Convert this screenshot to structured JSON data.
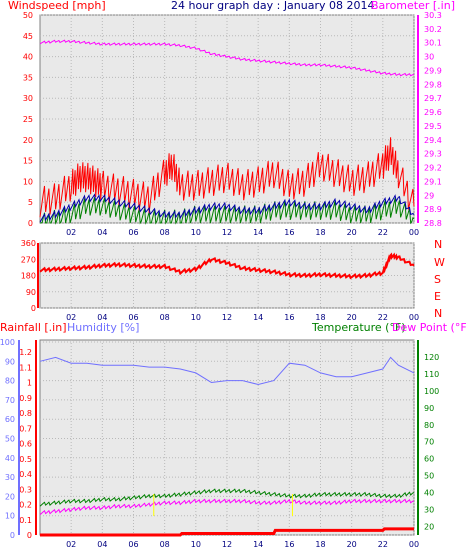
{
  "header": {
    "left_label": "Windspeed [mph]",
    "title": "24 hour graph day : January 08 2014",
    "right_label": "Barometer [.in]"
  },
  "bottom_header": {
    "rain_label": "Rainfall [.in]",
    "humidity_label": "Humidity [%]",
    "temp_label": "Temperature (°F)",
    "dew_label": "Dew Point (°F)"
  },
  "colors": {
    "background": "#ffffff",
    "plot_bg": "#e9e9e9",
    "grid": "#b9b9b9",
    "wind_gust": "#ff0000",
    "wind_avg": "#0000aa",
    "wind_speed": "#008000",
    "barometer": "#ff00ff",
    "wind_dir": "#ff0000",
    "humidity": "#7070ff",
    "temperature": "#008000",
    "dew_point": "#ff00ff",
    "rain": "#ff0000",
    "rain_tick": "#ffff00",
    "header_title": "#000080"
  },
  "chart_data": [
    {
      "type": "line",
      "name": "wind-and-barometer",
      "x_ticks": [
        "02",
        "04",
        "06",
        "08",
        "10",
        "12",
        "14",
        "16",
        "18",
        "20",
        "22",
        "00"
      ],
      "xlim": [
        0,
        24
      ],
      "y_left_ticks": [
        "0",
        "5",
        "10",
        "15",
        "20",
        "25",
        "30",
        "35",
        "40",
        "45",
        "50"
      ],
      "ylim_left": [
        0,
        50
      ],
      "y_right_ticks": [
        "28.8",
        "28.9",
        "29",
        "29.1",
        "29.2",
        "29.3",
        "29.4",
        "29.5",
        "29.6",
        "29.7",
        "29.8",
        "29.9",
        "30",
        "30.1",
        "30.2",
        "30.3"
      ],
      "ylim_right": [
        28.8,
        30.3
      ],
      "barometer": {
        "x": [
          0,
          1,
          2,
          3,
          4,
          5,
          6,
          7,
          8,
          9,
          10,
          11,
          12,
          13,
          14,
          15,
          16,
          17,
          18,
          19,
          20,
          21,
          22,
          23,
          24
        ],
        "y": [
          30.1,
          30.11,
          30.11,
          30.1,
          30.09,
          30.09,
          30.09,
          30.09,
          30.09,
          30.08,
          30.06,
          30.02,
          30.0,
          29.98,
          29.97,
          29.96,
          29.95,
          29.94,
          29.94,
          29.93,
          29.92,
          29.9,
          29.88,
          29.87,
          29.87
        ]
      },
      "gust": {
        "x": [
          0,
          1,
          2,
          2.5,
          3,
          3.5,
          4,
          5,
          6,
          7,
          8,
          8.5,
          9,
          10,
          11,
          12,
          13,
          14,
          15,
          16,
          17,
          18,
          19,
          20,
          21,
          22,
          22.5,
          23,
          24
        ],
        "y": [
          5,
          6,
          9,
          11,
          11,
          10,
          9,
          8,
          7,
          6,
          12,
          14,
          9,
          9,
          10,
          11,
          9,
          10,
          12,
          9,
          10,
          14,
          12,
          10,
          11,
          14,
          17,
          12,
          4
        ]
      },
      "average": {
        "x": [
          0,
          1,
          2,
          3,
          4,
          5,
          6,
          7,
          8,
          9,
          10,
          11,
          12,
          13,
          14,
          15,
          16,
          17,
          18,
          19,
          20,
          21,
          22,
          23,
          24
        ],
        "y": [
          1,
          2,
          4,
          6,
          6,
          5,
          4,
          3,
          2,
          2,
          3,
          4,
          4,
          3,
          3,
          4,
          5,
          4,
          4,
          5,
          4,
          3,
          5,
          6,
          2
        ]
      },
      "speed": {
        "x": [
          0,
          1,
          2,
          3,
          4,
          5,
          6,
          7,
          8,
          9,
          10,
          11,
          12,
          13,
          14,
          15,
          16,
          17,
          18,
          19,
          20,
          21,
          22,
          23,
          24
        ],
        "y": [
          0,
          1,
          2,
          4,
          4,
          3,
          2,
          1,
          1,
          1,
          2,
          2,
          2,
          2,
          2,
          3,
          3,
          3,
          3,
          3,
          2,
          2,
          3,
          4,
          1
        ]
      }
    },
    {
      "type": "line",
      "name": "wind-direction",
      "x_ticks": [
        "02",
        "04",
        "06",
        "08",
        "10",
        "12",
        "14",
        "16",
        "18",
        "20",
        "22",
        "00"
      ],
      "xlim": [
        0,
        24
      ],
      "y_ticks": [
        "0",
        "90",
        "180",
        "270",
        "360"
      ],
      "ylim": [
        0,
        360
      ],
      "direction_letters": [
        "N",
        "W",
        "S",
        "E",
        "N"
      ],
      "x": [
        0,
        1,
        2,
        3,
        4,
        5,
        6,
        7,
        8,
        9,
        10,
        11,
        12,
        13,
        14,
        15,
        16,
        17,
        18,
        19,
        20,
        21,
        22,
        22.5,
        23,
        24
      ],
      "y": [
        210,
        215,
        220,
        225,
        235,
        240,
        235,
        230,
        230,
        200,
        215,
        270,
        250,
        220,
        210,
        200,
        185,
        180,
        185,
        180,
        175,
        180,
        195,
        290,
        280,
        235
      ]
    },
    {
      "type": "line",
      "name": "rain-humidity-temperature",
      "x_ticks": [
        "02",
        "04",
        "06",
        "08",
        "10",
        "12",
        "14",
        "16",
        "18",
        "20",
        "22",
        "00"
      ],
      "xlim": [
        0,
        24
      ],
      "rain_ticks": [
        "0",
        "0.1",
        "0.2",
        "0.3",
        "0.4",
        "0.5",
        "0.6",
        "0.7",
        "0.8",
        "0.9",
        "1",
        "1.1",
        "1.2"
      ],
      "rain_lim": [
        0,
        1.2
      ],
      "humidity_ticks": [
        "0",
        "10",
        "20",
        "30",
        "40",
        "50",
        "60",
        "70",
        "80",
        "90",
        "100"
      ],
      "humidity_lim": [
        0,
        100
      ],
      "temp_ticks": [
        "20",
        "30",
        "40",
        "50",
        "60",
        "70",
        "80",
        "90",
        "100",
        "110",
        "120"
      ],
      "temp_lim": [
        15,
        130
      ],
      "humidity": {
        "x": [
          0,
          1,
          2,
          3,
          4,
          5,
          6,
          7,
          8,
          9,
          10,
          11,
          12,
          13,
          14,
          15,
          16,
          17,
          18,
          19,
          20,
          21,
          22,
          22.5,
          23,
          24
        ],
        "y": [
          90,
          92,
          89,
          89,
          88,
          88,
          88,
          87,
          87,
          86,
          84,
          79,
          80,
          80,
          78,
          80,
          89,
          88,
          84,
          82,
          82,
          84,
          86,
          92,
          88,
          84
        ]
      },
      "temperature": {
        "x": [
          0,
          1,
          2,
          3,
          4,
          5,
          6,
          7,
          8,
          9,
          10,
          11,
          12,
          13,
          14,
          15,
          16,
          17,
          18,
          19,
          20,
          21,
          22,
          23,
          24
        ],
        "y": [
          33,
          34,
          35,
          35,
          36,
          36,
          37,
          38,
          38,
          39,
          40,
          41,
          41,
          41,
          40,
          39,
          38,
          38,
          39,
          39,
          39,
          39,
          38,
          38,
          40
        ]
      },
      "dew_point": {
        "x": [
          0,
          1,
          2,
          3,
          4,
          5,
          6,
          7,
          8,
          9,
          10,
          11,
          12,
          13,
          14,
          15,
          16,
          17,
          18,
          19,
          20,
          21,
          22,
          23,
          24
        ],
        "y": [
          28,
          29,
          30,
          31,
          31,
          32,
          32,
          33,
          34,
          34,
          35,
          35,
          35,
          35,
          34,
          34,
          35,
          34,
          34,
          34,
          35,
          35,
          35,
          35,
          35
        ]
      },
      "rain": {
        "x": [
          0,
          9,
          9.1,
          15,
          15.1,
          22,
          22.1,
          24
        ],
        "y": [
          0,
          0,
          0.01,
          0.01,
          0.03,
          0.03,
          0.04,
          0.04
        ]
      }
    }
  ]
}
